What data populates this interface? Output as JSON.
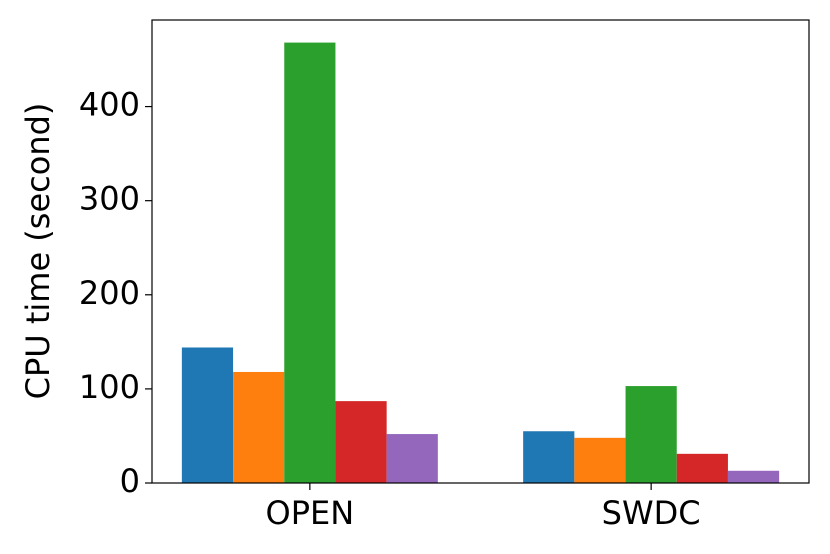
{
  "chart_data": {
    "type": "bar",
    "y_label": "CPU time (second)",
    "categories": [
      "OPEN",
      "SWDC"
    ],
    "series": [
      {
        "color": "#1f77b4",
        "values": [
          144,
          55
        ]
      },
      {
        "color": "#ff7f0e",
        "values": [
          118,
          48
        ]
      },
      {
        "color": "#2ca02c",
        "values": [
          468,
          103
        ]
      },
      {
        "color": "#d62728",
        "values": [
          87,
          31
        ]
      },
      {
        "color": "#9467bd",
        "values": [
          52,
          13
        ]
      }
    ],
    "ylim": [
      0,
      492
    ],
    "yticks": [
      0,
      100,
      200,
      300,
      400
    ],
    "grid": false
  }
}
